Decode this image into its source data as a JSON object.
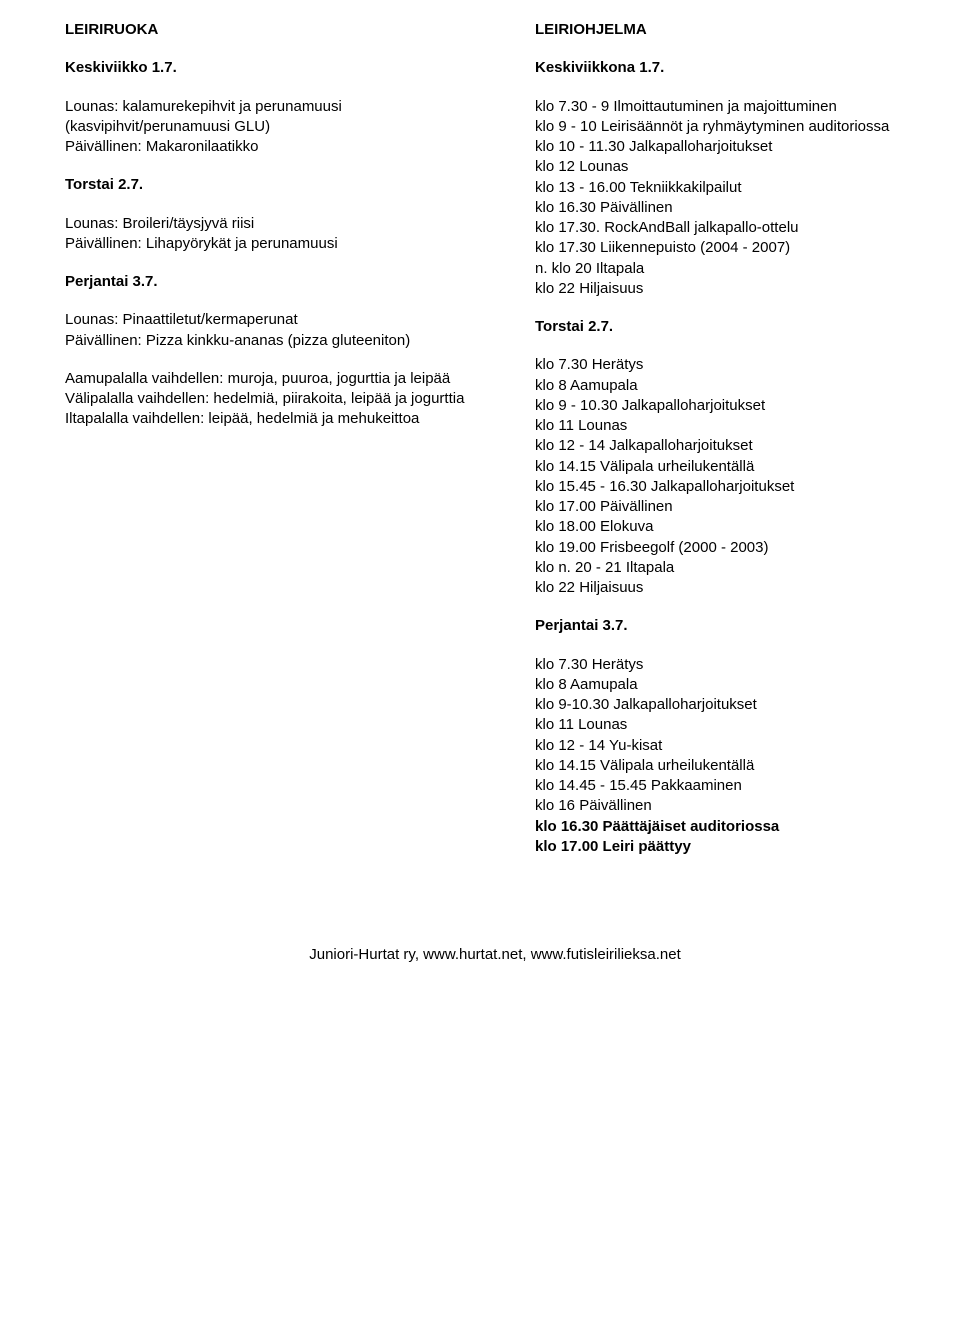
{
  "left": {
    "mainTitle": "LEIRIRUOKA",
    "day1": {
      "title": "Keskiviikko 1.7.",
      "body": "Lounas: kalamurekepihvit ja perunamuusi\n(kasvipihvit/perunamuusi GLU)\nPäivällinen: Makaronilaatikko"
    },
    "day2": {
      "title": "Torstai 2.7.",
      "body": "Lounas: Broileri/täysjyvä riisi\nPäivällinen: Lihapyörykät ja perunamuusi"
    },
    "day3": {
      "title": "Perjantai 3.7.",
      "body": "Lounas: Pinaattiletut/kermaperunat\nPäivällinen: Pizza kinkku-ananas (pizza gluteeniton)"
    },
    "extra": "Aamupalalla vaihdellen: muroja, puuroa, jogurttia ja leipää\nVälipalalla vaihdellen: hedelmiä, piirakoita, leipää ja jogurttia\nIltapalalla vaihdellen: leipää, hedelmiä ja mehukeittoa"
  },
  "right": {
    "mainTitle": "LEIRIOHJELMA",
    "day1": {
      "title": "Keskiviikkona 1.7.",
      "lines": [
        "klo 7.30 - 9 Ilmoittautuminen ja majoittuminen",
        "klo 9 - 10 Leirisäännöt ja ryhmäytyminen auditoriossa",
        "klo 10 - 11.30 Jalkapalloharjoitukset",
        "klo 12 Lounas",
        "klo 13 - 16.00 Tekniikkakilpailut",
        "klo 16.30 Päivällinen",
        "klo 17.30. RockAndBall jalkapallo-ottelu",
        "klo 17.30 Liikennepuisto (2004 - 2007)",
        "n. klo 20 Iltapala",
        "klo 22 Hiljaisuus"
      ]
    },
    "day2": {
      "title": "Torstai 2.7.",
      "lines": [
        "klo 7.30 Herätys",
        "klo 8 Aamupala",
        "klo 9 - 10.30 Jalkapalloharjoitukset",
        "klo 11 Lounas",
        "klo 12 - 14 Jalkapalloharjoitukset",
        "klo 14.15 Välipala urheilukentällä",
        "klo 15.45 - 16.30 Jalkapalloharjoitukset",
        "klo 17.00 Päivällinen",
        "klo 18.00 Elokuva",
        "klo 19.00 Frisbeegolf (2000 - 2003)",
        "klo n. 20 - 21 Iltapala",
        "klo 22 Hiljaisuus"
      ]
    },
    "day3": {
      "title": "Perjantai 3.7.",
      "lines": [
        {
          "text": "klo 7.30 Herätys",
          "bold": false
        },
        {
          "text": "klo 8 Aamupala",
          "bold": false
        },
        {
          "text": "klo 9-10.30 Jalkapalloharjoitukset",
          "bold": false
        },
        {
          "text": "klo 11 Lounas",
          "bold": false
        },
        {
          "text": "klo 12 - 14 Yu-kisat",
          "bold": false
        },
        {
          "text": "klo 14.15 Välipala urheilukentällä",
          "bold": false
        },
        {
          "text": "klo 14.45 - 15.45 Pakkaaminen",
          "bold": false
        },
        {
          "text": "klo 16 Päivällinen",
          "bold": false
        },
        {
          "text": "klo 16.30 Päättäjäiset auditoriossa",
          "bold": true
        },
        {
          "text": "klo 17.00 Leiri päättyy",
          "bold": true
        }
      ]
    }
  },
  "footer": "Juniori-Hurtat ry, www.hurtat.net, www.futisleirilieksa.net"
}
